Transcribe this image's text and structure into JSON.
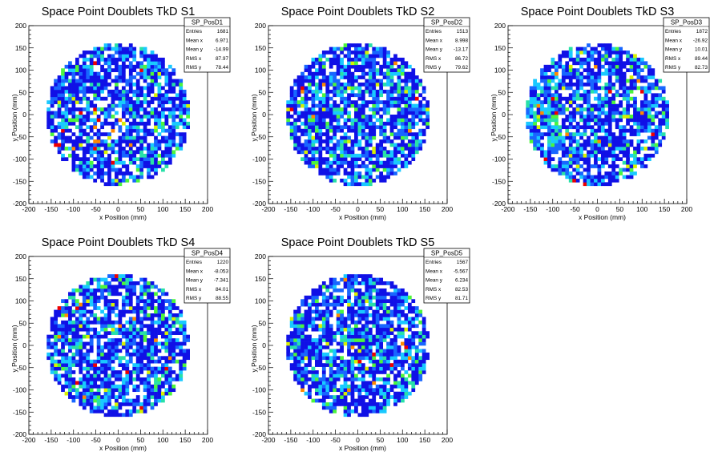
{
  "chart_data": [
    {
      "type": "heatmap",
      "title": "Space Point Doublets TkD S1",
      "xlabel": "x Position (mm)",
      "ylabel": "y Position (mm)",
      "xlim": [
        -200,
        200
      ],
      "ylim": [
        -200,
        200
      ],
      "ticks": [
        -200,
        -150,
        -100,
        -50,
        0,
        50,
        100,
        150,
        200
      ],
      "active_region": {
        "shape": "disk",
        "radius_mm": 160
      },
      "stats": {
        "name": "SP_PosD1",
        "rows": [
          [
            "Entries",
            "1681"
          ],
          [
            "Mean x",
            "6.971"
          ],
          [
            "Mean y",
            "-14.99"
          ],
          [
            "RMS x",
            "87.97"
          ],
          [
            "RMS y",
            "78.44"
          ]
        ]
      },
      "grid": false
    },
    {
      "type": "heatmap",
      "title": "Space Point Doublets TkD S2",
      "xlabel": "x Position (mm)",
      "ylabel": "y Position (mm)",
      "xlim": [
        -200,
        200
      ],
      "ylim": [
        -200,
        200
      ],
      "ticks": [
        -200,
        -150,
        -100,
        -50,
        0,
        50,
        100,
        150,
        200
      ],
      "active_region": {
        "shape": "disk",
        "radius_mm": 160
      },
      "stats": {
        "name": "SP_PosD2",
        "rows": [
          [
            "Entries",
            "1513"
          ],
          [
            "Mean x",
            "8.998"
          ],
          [
            "Mean y",
            "-13.17"
          ],
          [
            "RMS x",
            "86.72"
          ],
          [
            "RMS y",
            "79.62"
          ]
        ]
      },
      "grid": false
    },
    {
      "type": "heatmap",
      "title": "Space Point Doublets TkD S3",
      "xlabel": "x Position (mm)",
      "ylabel": "y Position (mm)",
      "xlim": [
        -200,
        200
      ],
      "ylim": [
        -200,
        200
      ],
      "ticks": [
        -200,
        -150,
        -100,
        -50,
        0,
        50,
        100,
        150,
        200
      ],
      "active_region": {
        "shape": "disk",
        "radius_mm": 160
      },
      "stats": {
        "name": "SP_PosD3",
        "rows": [
          [
            "Entries",
            "1872"
          ],
          [
            "Mean x",
            "-26.92"
          ],
          [
            "Mean y",
            "10.01"
          ],
          [
            "RMS x",
            "89.44"
          ],
          [
            "RMS y",
            "82.73"
          ]
        ]
      },
      "grid": false
    },
    {
      "type": "heatmap",
      "title": "Space Point Doublets TkD S4",
      "xlabel": "x Position (mm)",
      "ylabel": "y Position (mm)",
      "xlim": [
        -200,
        200
      ],
      "ylim": [
        -200,
        200
      ],
      "ticks": [
        -200,
        -150,
        -100,
        -50,
        0,
        50,
        100,
        150,
        200
      ],
      "active_region": {
        "shape": "disk",
        "radius_mm": 160
      },
      "stats": {
        "name": "SP_PosD4",
        "rows": [
          [
            "Entries",
            "1220"
          ],
          [
            "Mean x",
            "-8.053"
          ],
          [
            "Mean y",
            "-7.341"
          ],
          [
            "RMS x",
            "84.01"
          ],
          [
            "RMS y",
            "88.55"
          ]
        ]
      },
      "grid": false
    },
    {
      "type": "heatmap",
      "title": "Space Point Doublets TkD S5",
      "xlabel": "x Position (mm)",
      "ylabel": "y Position (mm)",
      "xlim": [
        -200,
        200
      ],
      "ylim": [
        -200,
        200
      ],
      "ticks": [
        -200,
        -150,
        -100,
        -50,
        0,
        50,
        100,
        150,
        200
      ],
      "active_region": {
        "shape": "disk",
        "radius_mm": 160
      },
      "stats": {
        "name": "SP_PosD5",
        "rows": [
          [
            "Entries",
            "1567"
          ],
          [
            "Mean x",
            "-5.567"
          ],
          [
            "Mean y",
            "6.234"
          ],
          [
            "RMS x",
            "82.53"
          ],
          [
            "RMS y",
            "81.71"
          ]
        ]
      },
      "grid": false
    }
  ],
  "colors": {
    "palette": [
      "#1010e6",
      "#1866ff",
      "#19c9ff",
      "#28e0a8",
      "#4cf53c",
      "#d8f000",
      "#ff8a00",
      "#ee0000"
    ],
    "frame": "#000000",
    "background": "#ffffff"
  }
}
